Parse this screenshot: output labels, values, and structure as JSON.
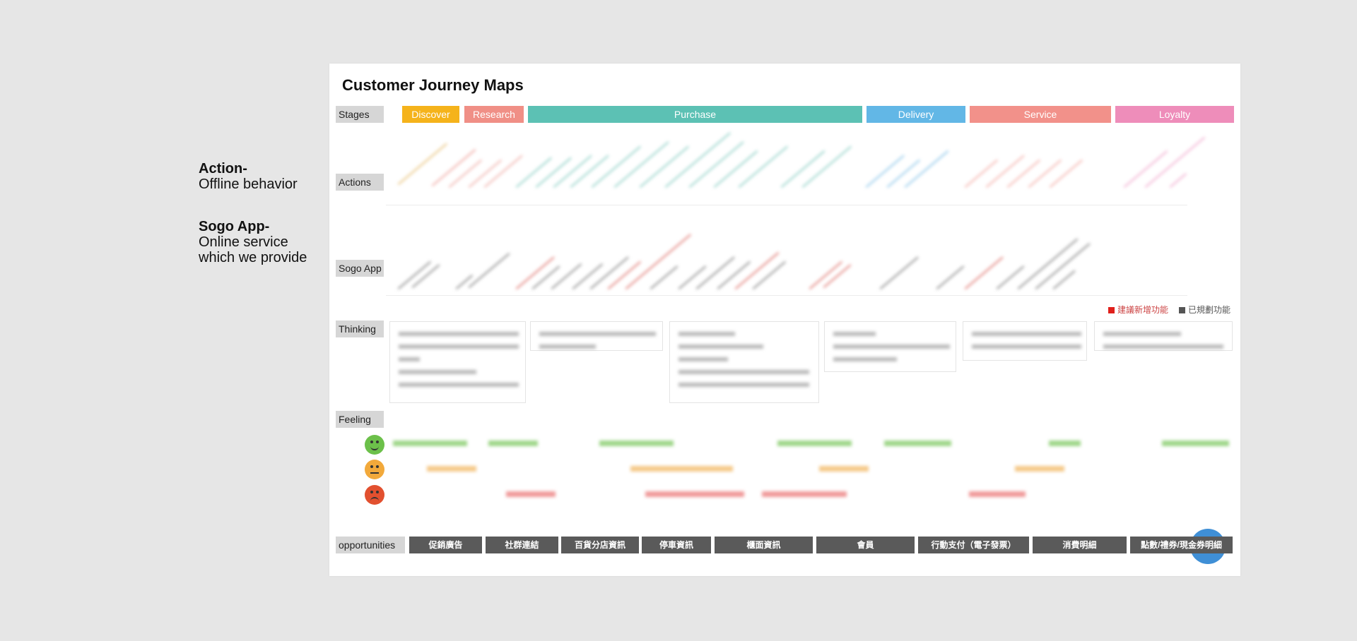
{
  "side_notes": {
    "action_title": "Action-",
    "action_sub": "Offline behavior",
    "sogo_title": "Sogo App-",
    "sogo_sub1": "Online service",
    "sogo_sub2": "which we provide"
  },
  "title": "Customer Journey Maps",
  "row_labels": {
    "stages": "Stages",
    "actions": "Actions",
    "sogo_app": "Sogo App",
    "thinking": "Thinking",
    "feeling": "Feeling",
    "opportunities": "opportunities"
  },
  "stages": [
    {
      "label": "Discover",
      "color": "#f5b31b"
    },
    {
      "label": "Research",
      "color": "#f08f86"
    },
    {
      "label": "Purchase",
      "color": "#5cc1b4"
    },
    {
      "label": "Delivery",
      "color": "#62b7e6"
    },
    {
      "label": "Service",
      "color": "#f2918a"
    },
    {
      "label": "Loyalty",
      "color": "#ee8dba"
    }
  ],
  "legend": {
    "new_label": "建議新增功能",
    "new_color": "#e0201b",
    "planned_label": "已規劃功能",
    "planned_color": "#555555"
  },
  "faces": {
    "happy_color": "#6cc04a",
    "neutral_color": "#f2a93b",
    "sad_color": "#e2502f"
  },
  "opportunities": [
    "促銷廣告",
    "社群連結",
    "百貨分店資訊",
    "停車資訊",
    "櫃面資訊",
    "會員",
    "行動支付（電子發票）",
    "消費明細",
    "點數/禮券/現金券明細"
  ]
}
